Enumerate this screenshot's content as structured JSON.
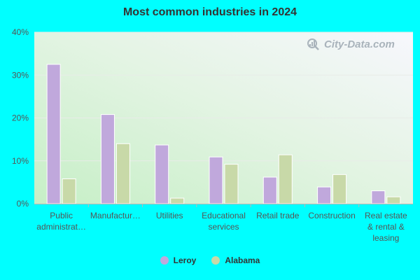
{
  "chart_data": {
    "type": "bar",
    "title": "Most common industries in 2024",
    "categories": [
      [
        "Public",
        "administrat…"
      ],
      [
        "Manufactur…"
      ],
      [
        "Utilities"
      ],
      [
        "Educational",
        "services"
      ],
      [
        "Retail trade"
      ],
      [
        "Construction"
      ],
      [
        "Real estate",
        "& rental &",
        "leasing"
      ]
    ],
    "series": [
      {
        "name": "Leroy",
        "color": "#c0a8dc",
        "values": [
          32.5,
          20.8,
          13.7,
          10.9,
          6.2,
          3.9,
          3.0
        ]
      },
      {
        "name": "Alabama",
        "color": "#c8d9a8",
        "values": [
          5.8,
          14.0,
          1.3,
          9.2,
          11.4,
          6.8,
          1.6
        ]
      }
    ],
    "ylim": [
      0,
      40
    ],
    "yticks": [
      0,
      10,
      20,
      30,
      40
    ],
    "ytick_labels": [
      "0%",
      "10%",
      "20%",
      "30%",
      "40%"
    ],
    "grid": true,
    "legend_position": "bottom"
  },
  "watermark": {
    "text": "City-Data.com",
    "icon": "magnifier-icon"
  }
}
